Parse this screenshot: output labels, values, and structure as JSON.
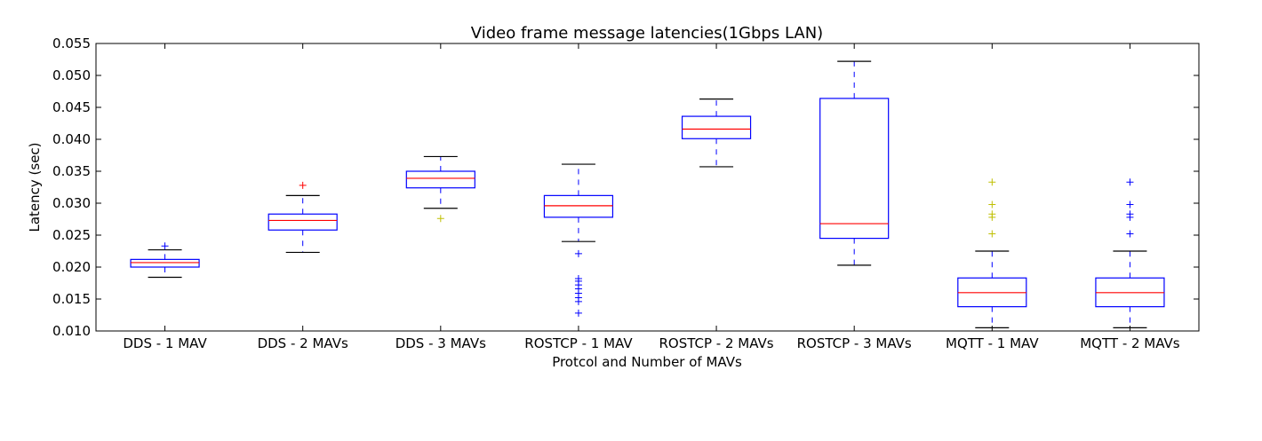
{
  "chart_data": {
    "type": "box",
    "title": "Video frame message latencies(1Gbps LAN)",
    "xlabel": "Protcol and Number of MAVs",
    "ylabel": "Latency (sec)",
    "ylim": [
      0.01,
      0.055
    ],
    "yticks": [
      0.01,
      0.015,
      0.02,
      0.025,
      0.03,
      0.035,
      0.04,
      0.045,
      0.05,
      0.055
    ],
    "ytick_labels": [
      "0.010",
      "0.015",
      "0.020",
      "0.025",
      "0.030",
      "0.035",
      "0.040",
      "0.045",
      "0.050",
      "0.055"
    ],
    "grid": false,
    "colors": {
      "box": "#0000ff",
      "median": "#ff0000",
      "whisker": "#0000ff",
      "cap": "#000000",
      "flier_blue": "#0000ff",
      "flier_olive": "#bfbf00",
      "flier_red": "#ff0000"
    },
    "categories": [
      "DDS - 1 MAV",
      "DDS - 2 MAVs",
      "DDS - 3 MAVs",
      "ROSTCP - 1 MAV",
      "ROSTCP - 2 MAVs",
      "ROSTCP - 3 MAVs",
      "MQTT - 1 MAV",
      "MQTT - 2 MAVs"
    ],
    "boxes": [
      {
        "whislo": 0.0184,
        "q1": 0.02,
        "med": 0.0207,
        "q3": 0.0212,
        "whishi": 0.0227,
        "fliers": [
          0.0233
        ],
        "flier_color": "flier_blue"
      },
      {
        "whislo": 0.0223,
        "q1": 0.0258,
        "med": 0.0273,
        "q3": 0.0283,
        "whishi": 0.0312,
        "fliers": [
          0.0328
        ],
        "flier_color": "flier_red"
      },
      {
        "whislo": 0.0292,
        "q1": 0.0324,
        "med": 0.0339,
        "q3": 0.035,
        "whishi": 0.0373,
        "fliers": [
          0.0276
        ],
        "flier_color": "flier_olive"
      },
      {
        "whislo": 0.024,
        "q1": 0.0278,
        "med": 0.0296,
        "q3": 0.0312,
        "whishi": 0.0361,
        "fliers": [
          0.0221,
          0.0182,
          0.0178,
          0.0172,
          0.0166,
          0.0159,
          0.0152,
          0.0146,
          0.0128
        ],
        "flier_color": "flier_blue"
      },
      {
        "whislo": 0.0357,
        "q1": 0.0401,
        "med": 0.0416,
        "q3": 0.0436,
        "whishi": 0.0463,
        "fliers": [],
        "flier_color": "flier_blue"
      },
      {
        "whislo": 0.0203,
        "q1": 0.0245,
        "med": 0.0268,
        "q3": 0.0464,
        "whishi": 0.0522,
        "fliers": [],
        "flier_color": "flier_blue"
      },
      {
        "whislo": 0.0105,
        "q1": 0.0138,
        "med": 0.016,
        "q3": 0.0183,
        "whishi": 0.0225,
        "fliers": [
          0.0252,
          0.0278,
          0.0283,
          0.0298,
          0.0333
        ],
        "flier_color": "flier_olive"
      },
      {
        "whislo": 0.0105,
        "q1": 0.0138,
        "med": 0.016,
        "q3": 0.0183,
        "whishi": 0.0225,
        "fliers": [
          0.0252,
          0.0278,
          0.0283,
          0.0298,
          0.0333
        ],
        "flier_color": "flier_blue"
      }
    ]
  }
}
